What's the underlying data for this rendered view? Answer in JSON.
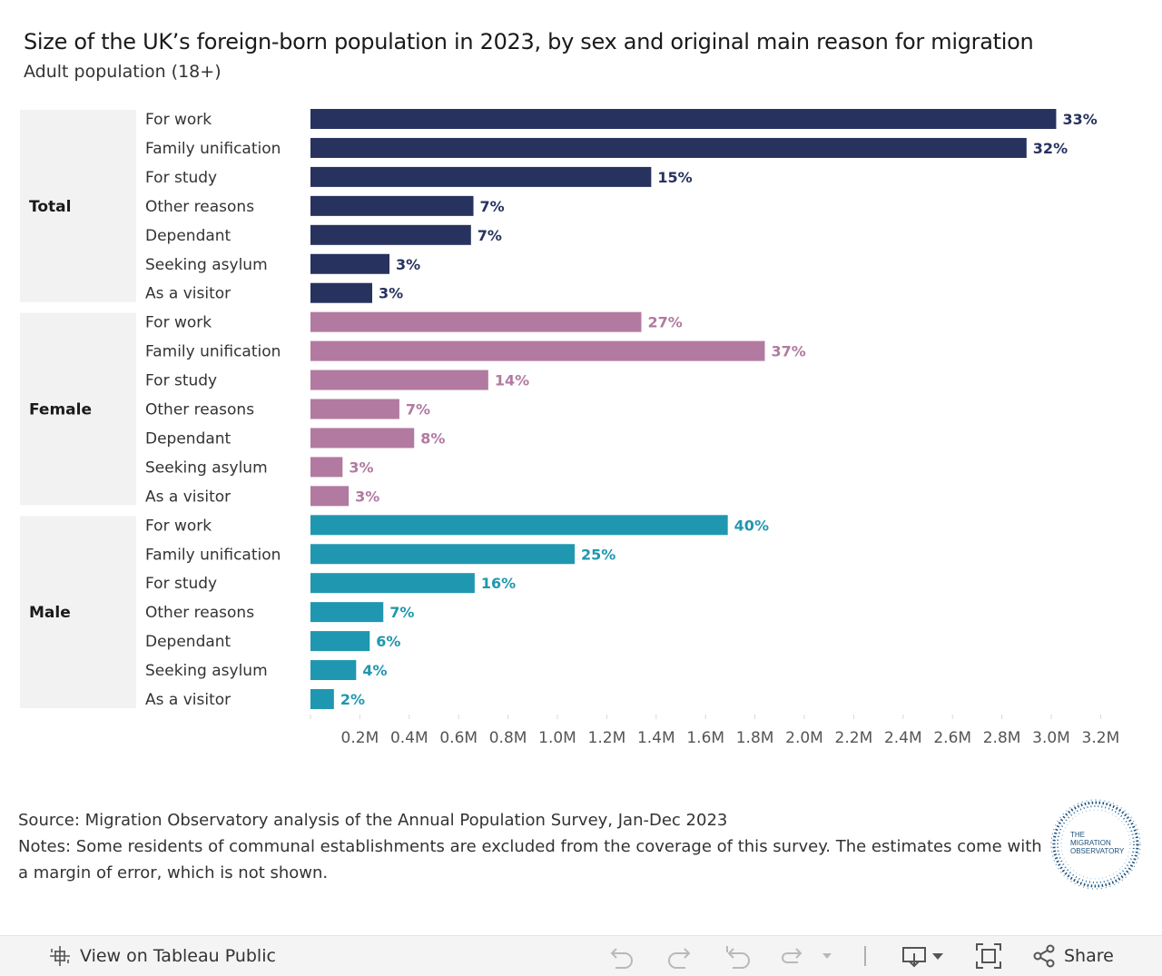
{
  "header": {
    "title": "Size of the UK’s foreign-born population in 2023, by sex and original main reason for migration",
    "subtitle": "Adult population (18+)"
  },
  "chart_data": {
    "type": "bar",
    "orientation": "horizontal",
    "title": "Size of the UK’s foreign-born population in 2023, by sex and original main reason for migration",
    "subtitle": "Adult population (18+)",
    "xlabel": "",
    "ylabel": "",
    "xlim": [
      0,
      3.3
    ],
    "x_unit": "millions",
    "x_ticks": [
      0.2,
      0.4,
      0.6,
      0.8,
      1.0,
      1.2,
      1.4,
      1.6,
      1.8,
      2.0,
      2.2,
      2.4,
      2.6,
      2.8,
      3.0,
      3.2
    ],
    "x_tick_labels": [
      "0.2M",
      "0.4M",
      "0.6M",
      "0.8M",
      "1.0M",
      "1.2M",
      "1.4M",
      "1.6M",
      "1.8M",
      "2.0M",
      "2.2M",
      "2.4M",
      "2.6M",
      "2.8M",
      "3.0M",
      "3.2M"
    ],
    "grid": false,
    "categories": [
      "For work",
      "Family unification",
      "For study",
      "Other reasons",
      "Dependant",
      "Seeking asylum",
      "As a visitor"
    ],
    "groups": [
      {
        "name": "Total",
        "color": "#27325e",
        "values": [
          3.02,
          2.9,
          1.38,
          0.66,
          0.65,
          0.32,
          0.25
        ],
        "labels": [
          "33%",
          "32%",
          "15%",
          "7%",
          "7%",
          "3%",
          "3%"
        ]
      },
      {
        "name": "Female",
        "color": "#b27aa1",
        "values": [
          1.34,
          1.84,
          0.72,
          0.36,
          0.42,
          0.13,
          0.155
        ],
        "labels": [
          "27%",
          "37%",
          "14%",
          "7%",
          "8%",
          "3%",
          "3%"
        ]
      },
      {
        "name": "Male",
        "color": "#2097b0",
        "values": [
          1.69,
          1.07,
          0.665,
          0.295,
          0.24,
          0.185,
          0.095
        ],
        "labels": [
          "40%",
          "25%",
          "16%",
          "7%",
          "6%",
          "4%",
          "2%"
        ]
      }
    ]
  },
  "footer": {
    "source": "Source: Migration Observatory analysis of the Annual Population Survey, Jan-Dec 2023",
    "notes_line1": "Notes: Some residents of communal establishments are excluded from the coverage of this survey. The estimates come with",
    "notes_line2": "a margin of error, which is not shown."
  },
  "logo": {
    "line1": "THE",
    "line2": "MIGRATION",
    "line3": "OBSERVATORY"
  },
  "toolbar": {
    "view_label": "View on Tableau Public",
    "share_label": "Share"
  }
}
